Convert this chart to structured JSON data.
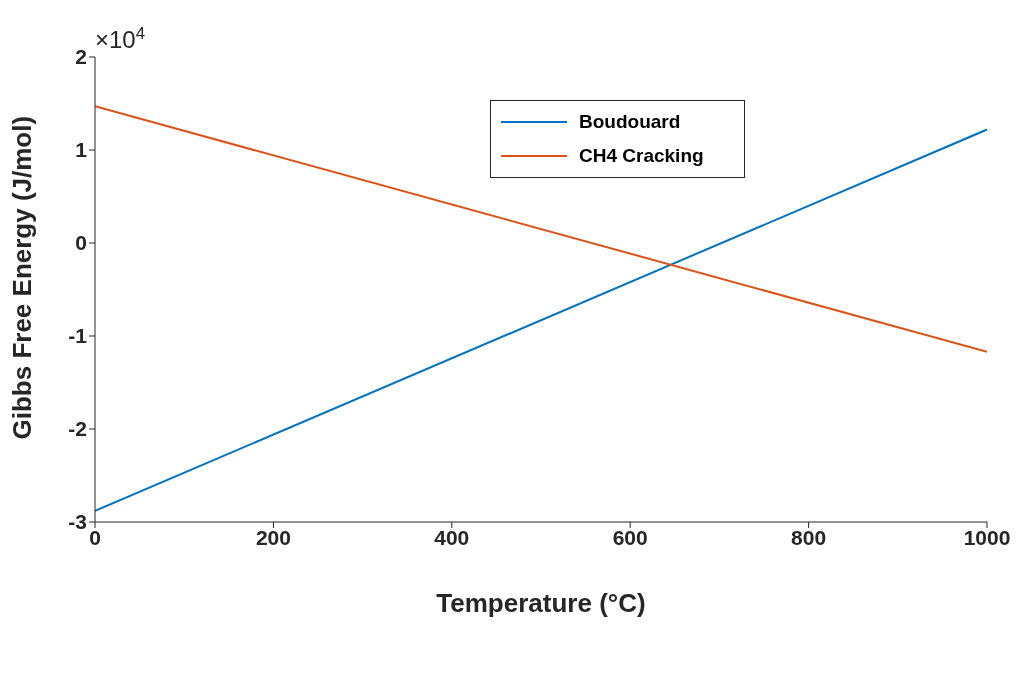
{
  "chart_data": {
    "type": "line",
    "xlabel": "Temperature (°C)",
    "ylabel": "Gibbs Free Energy (J/mol)",
    "x": [
      0,
      1000
    ],
    "series": [
      {
        "name": "Boudouard",
        "color": "#0072bd",
        "values": [
          -2.88,
          1.22
        ]
      },
      {
        "name": "CH4 Cracking",
        "color": "#d95319",
        "values": [
          1.47,
          -1.17
        ]
      }
    ],
    "xlim": [
      0,
      1000
    ],
    "xticks": [
      0,
      200,
      400,
      600,
      800,
      1000
    ],
    "ylim": [
      -3,
      2
    ],
    "yticks": [
      -3,
      -2,
      -1,
      0,
      1,
      2
    ],
    "annotations": [
      "×10$^{4}$"
    ],
    "legend": "top right",
    "marker": "none",
    "line_style": "solid"
  }
}
